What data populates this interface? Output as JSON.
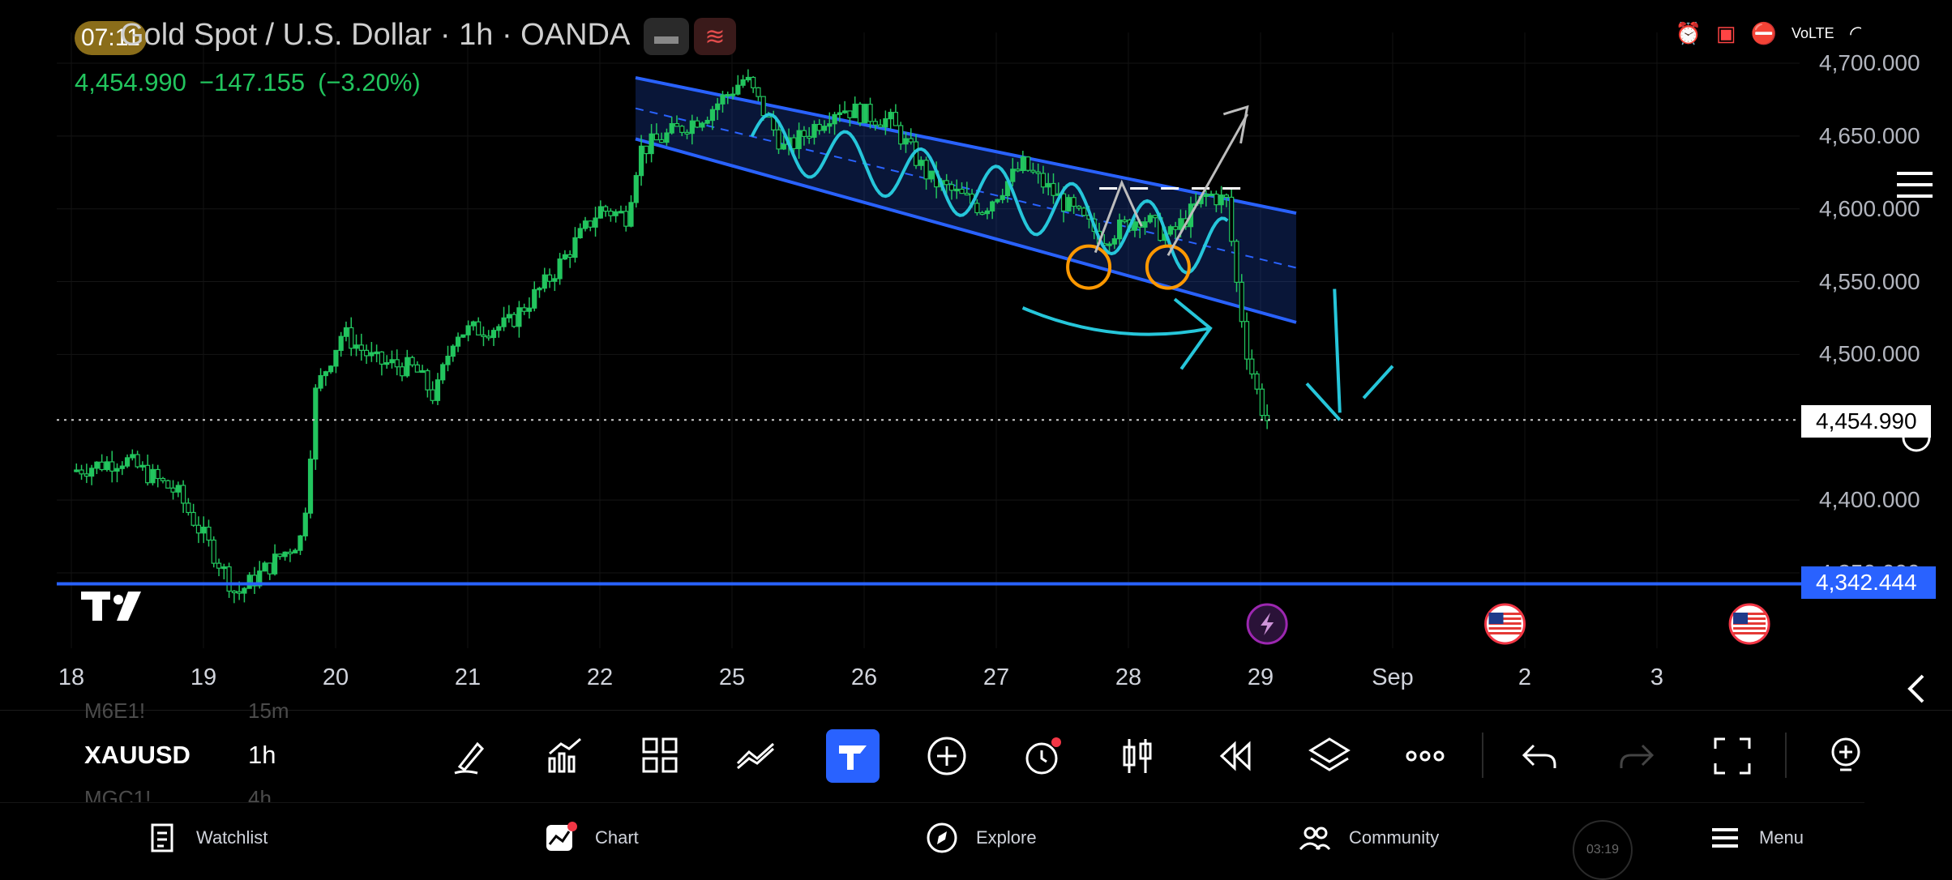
{
  "status_bar": {
    "time": "07:11"
  },
  "header": {
    "title": "Gold Spot / U.S. Dollar · 1h · OANDA",
    "last_price": "4,454.990",
    "change": "−147.155",
    "change_pct": "(−3.20%)"
  },
  "colors": {
    "up": "#22c55e",
    "accent": "#2962ff",
    "drawing": "#26c6da",
    "marker": "#ff9800",
    "neutral": "#b2b5be"
  },
  "chart_data": {
    "type": "candlestick",
    "symbol": "XAUUSD",
    "timeframe": "1h",
    "x_ticks": [
      "18",
      "19",
      "20",
      "21",
      "22",
      "25",
      "26",
      "27",
      "28",
      "29",
      "Sep",
      "2",
      "3"
    ],
    "y_ticks": [
      "4,700.000",
      "4,650.000",
      "4,600.000",
      "4,550.000",
      "4,500.000",
      "4,400.000",
      "4,350.000"
    ],
    "ylim": [
      4315,
      4700
    ],
    "last_price": 4454.99,
    "last_price_label": "4,454.990",
    "horizontal_line": 4342.444,
    "horizontal_line_label": "4,342.444",
    "close_path": [
      [
        0,
        4420
      ],
      [
        0.4,
        4428
      ],
      [
        0.8,
        4405
      ],
      [
        1.1,
        4360
      ],
      [
        1.25,
        4335
      ],
      [
        1.5,
        4355
      ],
      [
        1.75,
        4375
      ],
      [
        1.85,
        4475
      ],
      [
        2.05,
        4515
      ],
      [
        2.3,
        4495
      ],
      [
        2.6,
        4490
      ],
      [
        2.75,
        4470
      ],
      [
        2.9,
        4515
      ],
      [
        3.3,
        4520
      ],
      [
        3.6,
        4550
      ],
      [
        4.0,
        4600
      ],
      [
        4.2,
        4595
      ],
      [
        4.3,
        4640
      ],
      [
        4.5,
        4650
      ],
      [
        4.8,
        4665
      ],
      [
        5.1,
        4690
      ],
      [
        5.4,
        4640
      ],
      [
        5.8,
        4670
      ],
      [
        6.2,
        4660
      ],
      [
        6.5,
        4620
      ],
      [
        6.9,
        4600
      ],
      [
        7.2,
        4630
      ],
      [
        7.5,
        4605
      ],
      [
        7.8,
        4580
      ],
      [
        8.1,
        4595
      ],
      [
        8.3,
        4580
      ],
      [
        8.6,
        4610
      ],
      [
        8.75,
        4605
      ],
      [
        8.8,
        4560
      ],
      [
        8.9,
        4500
      ],
      [
        9.0,
        4465
      ],
      [
        9.05,
        4455
      ]
    ],
    "channel": {
      "x0": 4.27,
      "x1": 9.27,
      "upper": [
        4690,
        4597
      ],
      "lower": [
        4648,
        4522
      ]
    },
    "events": [
      "lightning-icon",
      "us-flag-icon",
      "us-flag-icon"
    ]
  },
  "toolbar": {
    "symbol": "XAUUSD",
    "timeframe": "1h",
    "ghost_above": "M6E1!",
    "ghost_above_tf": "15m",
    "ghost_below": "MGC1!",
    "ghost_below_tf": "4h"
  },
  "nav": {
    "watchlist": "Watchlist",
    "chart": "Chart",
    "explore": "Explore",
    "community": "Community",
    "menu": "Menu"
  },
  "overlay": {
    "timer": "03:19"
  }
}
